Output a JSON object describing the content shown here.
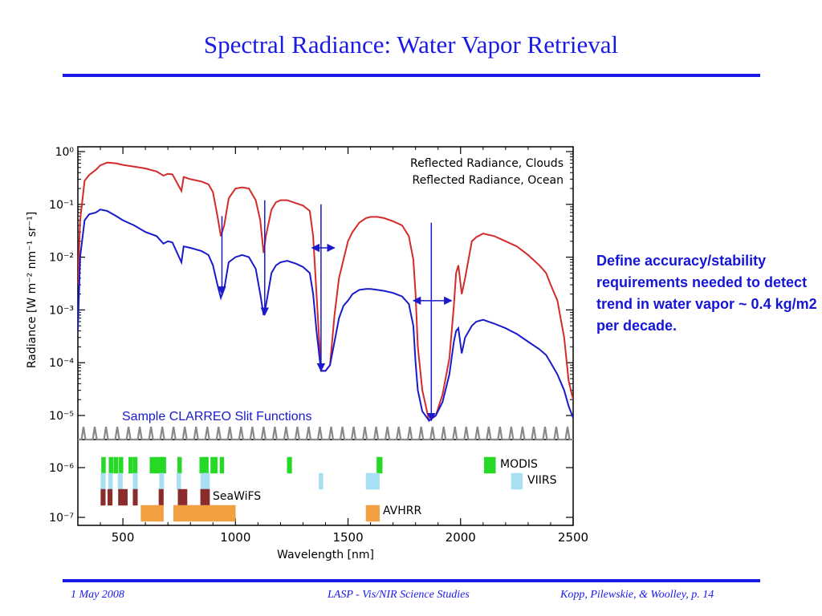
{
  "slide": {
    "title": "Spectral Radiance: Water Vapor Retrieval",
    "side_note": "Define accuracy/stability requirements needed to detect trend in water vapor ~ 0.4 kg/m2 per decade.",
    "footer_left": "1 May 2008",
    "footer_center": "LASP - Vis/NIR Science Studies",
    "footer_right": "Kopp, Pilewskie, & Woolley, p. 14",
    "accent_color": "#1a1ae6"
  },
  "chart_data": {
    "type": "line",
    "xlabel": "Wavelength [nm]",
    "ylabel": "Radiance [W m⁻² nm⁻¹ sr⁻¹]",
    "xlim": [
      300,
      2500
    ],
    "ylim": [
      1e-07,
      1
    ],
    "yscale": "log",
    "x_ticks": [
      500,
      1000,
      1500,
      2000,
      2500
    ],
    "y_ticks": [
      {
        "value": 1,
        "label": "10⁰"
      },
      {
        "value": 0.1,
        "label": "10⁻¹"
      },
      {
        "value": 0.01,
        "label": "10⁻²"
      },
      {
        "value": 0.001,
        "label": "10⁻³"
      },
      {
        "value": 0.0001,
        "label": "10⁻⁴"
      },
      {
        "value": 1e-05,
        "label": "10⁻⁵"
      },
      {
        "value": 1e-06,
        "label": "10⁻⁶"
      },
      {
        "value": 1e-07,
        "label": "10⁻⁷"
      }
    ],
    "series": [
      {
        "name": "Reflected Radiance, Clouds",
        "color": "#d42a2a",
        "points": [
          [
            300,
            0.003
          ],
          [
            310,
            0.05
          ],
          [
            330,
            0.28
          ],
          [
            350,
            0.36
          ],
          [
            380,
            0.45
          ],
          [
            400,
            0.55
          ],
          [
            430,
            0.62
          ],
          [
            470,
            0.6
          ],
          [
            500,
            0.56
          ],
          [
            550,
            0.52
          ],
          [
            600,
            0.48
          ],
          [
            650,
            0.42
          ],
          [
            680,
            0.35
          ],
          [
            700,
            0.38
          ],
          [
            720,
            0.37
          ],
          [
            760,
            0.18
          ],
          [
            770,
            0.33
          ],
          [
            800,
            0.3
          ],
          [
            850,
            0.27
          ],
          [
            880,
            0.24
          ],
          [
            900,
            0.17
          ],
          [
            920,
            0.06
          ],
          [
            935,
            0.025
          ],
          [
            950,
            0.04
          ],
          [
            970,
            0.13
          ],
          [
            1000,
            0.2
          ],
          [
            1030,
            0.21
          ],
          [
            1060,
            0.2
          ],
          [
            1090,
            0.12
          ],
          [
            1110,
            0.05
          ],
          [
            1125,
            0.012
          ],
          [
            1135,
            0.025
          ],
          [
            1160,
            0.08
          ],
          [
            1180,
            0.11
          ],
          [
            1200,
            0.12
          ],
          [
            1230,
            0.12
          ],
          [
            1270,
            0.105
          ],
          [
            1300,
            0.095
          ],
          [
            1330,
            0.075
          ],
          [
            1345,
            0.025
          ],
          [
            1360,
            0.002
          ],
          [
            1380,
            7e-05
          ],
          [
            1400,
            7e-05
          ],
          [
            1420,
            9e-05
          ],
          [
            1440,
            0.0008
          ],
          [
            1460,
            0.004
          ],
          [
            1480,
            0.009
          ],
          [
            1500,
            0.02
          ],
          [
            1520,
            0.03
          ],
          [
            1550,
            0.045
          ],
          [
            1580,
            0.055
          ],
          [
            1600,
            0.058
          ],
          [
            1630,
            0.058
          ],
          [
            1660,
            0.055
          ],
          [
            1700,
            0.048
          ],
          [
            1740,
            0.04
          ],
          [
            1770,
            0.025
          ],
          [
            1790,
            0.009
          ],
          [
            1800,
            0.002
          ],
          [
            1810,
            0.0002
          ],
          [
            1830,
            3e-05
          ],
          [
            1860,
            8e-06
          ],
          [
            1890,
            1e-05
          ],
          [
            1920,
            2.5e-05
          ],
          [
            1950,
            0.00012
          ],
          [
            1970,
            0.0012
          ],
          [
            1980,
            0.005
          ],
          [
            1990,
            0.007
          ],
          [
            2005,
            0.002
          ],
          [
            2020,
            0.004
          ],
          [
            2050,
            0.02
          ],
          [
            2070,
            0.024
          ],
          [
            2100,
            0.028
          ],
          [
            2150,
            0.025
          ],
          [
            2200,
            0.02
          ],
          [
            2250,
            0.016
          ],
          [
            2300,
            0.011
          ],
          [
            2350,
            0.007
          ],
          [
            2380,
            0.005
          ],
          [
            2400,
            0.003
          ],
          [
            2430,
            0.0015
          ],
          [
            2460,
            0.0003
          ],
          [
            2480,
            4.5e-05
          ],
          [
            2500,
            2e-05
          ]
        ]
      },
      {
        "name": "Reflected Radiance, Ocean",
        "color": "#1a1acc",
        "points": [
          [
            300,
            0.0004
          ],
          [
            310,
            0.01
          ],
          [
            330,
            0.05
          ],
          [
            350,
            0.065
          ],
          [
            380,
            0.07
          ],
          [
            400,
            0.08
          ],
          [
            430,
            0.075
          ],
          [
            470,
            0.06
          ],
          [
            500,
            0.05
          ],
          [
            550,
            0.04
          ],
          [
            600,
            0.03
          ],
          [
            650,
            0.025
          ],
          [
            680,
            0.018
          ],
          [
            700,
            0.02
          ],
          [
            720,
            0.019
          ],
          [
            760,
            0.008
          ],
          [
            770,
            0.016
          ],
          [
            800,
            0.015
          ],
          [
            850,
            0.013
          ],
          [
            880,
            0.011
          ],
          [
            900,
            0.007
          ],
          [
            920,
            0.003
          ],
          [
            935,
            0.0017
          ],
          [
            950,
            0.0025
          ],
          [
            970,
            0.008
          ],
          [
            1000,
            0.01
          ],
          [
            1030,
            0.011
          ],
          [
            1060,
            0.01
          ],
          [
            1090,
            0.006
          ],
          [
            1110,
            0.002
          ],
          [
            1125,
            0.0008
          ],
          [
            1135,
            0.0012
          ],
          [
            1160,
            0.005
          ],
          [
            1180,
            0.007
          ],
          [
            1200,
            0.008
          ],
          [
            1230,
            0.0085
          ],
          [
            1270,
            0.0075
          ],
          [
            1300,
            0.0065
          ],
          [
            1330,
            0.005
          ],
          [
            1345,
            0.002
          ],
          [
            1360,
            0.0004
          ],
          [
            1380,
            7e-05
          ],
          [
            1400,
            7e-05
          ],
          [
            1420,
            9e-05
          ],
          [
            1440,
            0.00025
          ],
          [
            1460,
            0.0007
          ],
          [
            1480,
            0.0012
          ],
          [
            1500,
            0.0015
          ],
          [
            1520,
            0.002
          ],
          [
            1550,
            0.0024
          ],
          [
            1580,
            0.0025
          ],
          [
            1600,
            0.0025
          ],
          [
            1630,
            0.0024
          ],
          [
            1660,
            0.0023
          ],
          [
            1700,
            0.0021
          ],
          [
            1740,
            0.0018
          ],
          [
            1770,
            0.0013
          ],
          [
            1790,
            0.0005
          ],
          [
            1800,
            0.0001
          ],
          [
            1810,
            3e-05
          ],
          [
            1830,
            1.2e-05
          ],
          [
            1860,
            8e-06
          ],
          [
            1890,
            1e-05
          ],
          [
            1920,
            1.8e-05
          ],
          [
            1950,
            6e-05
          ],
          [
            1970,
            0.00025
          ],
          [
            1980,
            0.0004
          ],
          [
            1990,
            0.00045
          ],
          [
            2005,
            0.00015
          ],
          [
            2020,
            0.0003
          ],
          [
            2050,
            0.0005
          ],
          [
            2070,
            0.0006
          ],
          [
            2100,
            0.00065
          ],
          [
            2150,
            0.00055
          ],
          [
            2200,
            0.00045
          ],
          [
            2250,
            0.00035
          ],
          [
            2300,
            0.00025
          ],
          [
            2350,
            0.00018
          ],
          [
            2380,
            0.00014
          ],
          [
            2400,
            0.0001
          ],
          [
            2430,
            6e-05
          ],
          [
            2460,
            3e-05
          ],
          [
            2480,
            1.5e-05
          ],
          [
            2500,
            9e-06
          ]
        ]
      }
    ],
    "annotations": {
      "slit_functions_label": "Sample CLARREO Slit Functions",
      "slit_functions_color": "#1a1acc",
      "slit_function_color": "#888888",
      "absorption_arrows": [
        {
          "x": 940,
          "from": 0.06,
          "to": 0.002
        },
        {
          "x": 1130,
          "from": 0.12,
          "to": 0.0008
        },
        {
          "x": 1380,
          "from": 0.1,
          "to": 7e-05
        },
        {
          "x": 1870,
          "from": 0.045,
          "to": 8e-06
        }
      ],
      "band_width_arrows": [
        {
          "x1": 1340,
          "x2": 1440,
          "y": 0.015
        },
        {
          "x1": 1790,
          "x2": 1960,
          "y": 0.0015
        }
      ]
    },
    "sensor_bands": [
      {
        "name": "MODIS",
        "color": "#27d927",
        "label_color": "#27d927",
        "bands": [
          [
            405,
            420
          ],
          [
            438,
            448
          ],
          [
            459,
            479
          ],
          [
            483,
            493
          ],
          [
            526,
            536
          ],
          [
            546,
            556
          ],
          [
            620,
            670
          ],
          [
            662,
            672
          ],
          [
            673,
            683
          ],
          [
            743,
            753
          ],
          [
            841,
            876
          ],
          [
            862,
            877
          ],
          [
            890,
            920
          ],
          [
            931,
            941
          ],
          [
            1230,
            1250
          ],
          [
            1628,
            1652
          ],
          [
            2105,
            2155
          ]
        ]
      },
      {
        "name": "VIIRS",
        "color": "#a9dff2",
        "label_color": "#8fd0f0",
        "bands": [
          [
            402,
            422
          ],
          [
            436,
            454
          ],
          [
            478,
            498
          ],
          [
            545,
            565
          ],
          [
            662,
            682
          ],
          [
            739,
            754
          ],
          [
            846,
            885
          ],
          [
            1371,
            1386
          ],
          [
            1580,
            1640
          ],
          [
            2225,
            2275
          ]
        ]
      },
      {
        "name": "SeaWiFS",
        "color": "#8b2c2c",
        "label_color": "#8b2c2c",
        "bands": [
          [
            402,
            422
          ],
          [
            433,
            453
          ],
          [
            480,
            500
          ],
          [
            500,
            520
          ],
          [
            545,
            565
          ],
          [
            660,
            680
          ],
          [
            745,
            785
          ],
          [
            845,
            885
          ]
        ]
      },
      {
        "name": "AVHRR",
        "color": "#f0a040",
        "label_color": "#f0a040",
        "bands": [
          [
            580,
            680
          ],
          [
            725,
            1000
          ],
          [
            1580,
            1640
          ]
        ]
      }
    ]
  }
}
